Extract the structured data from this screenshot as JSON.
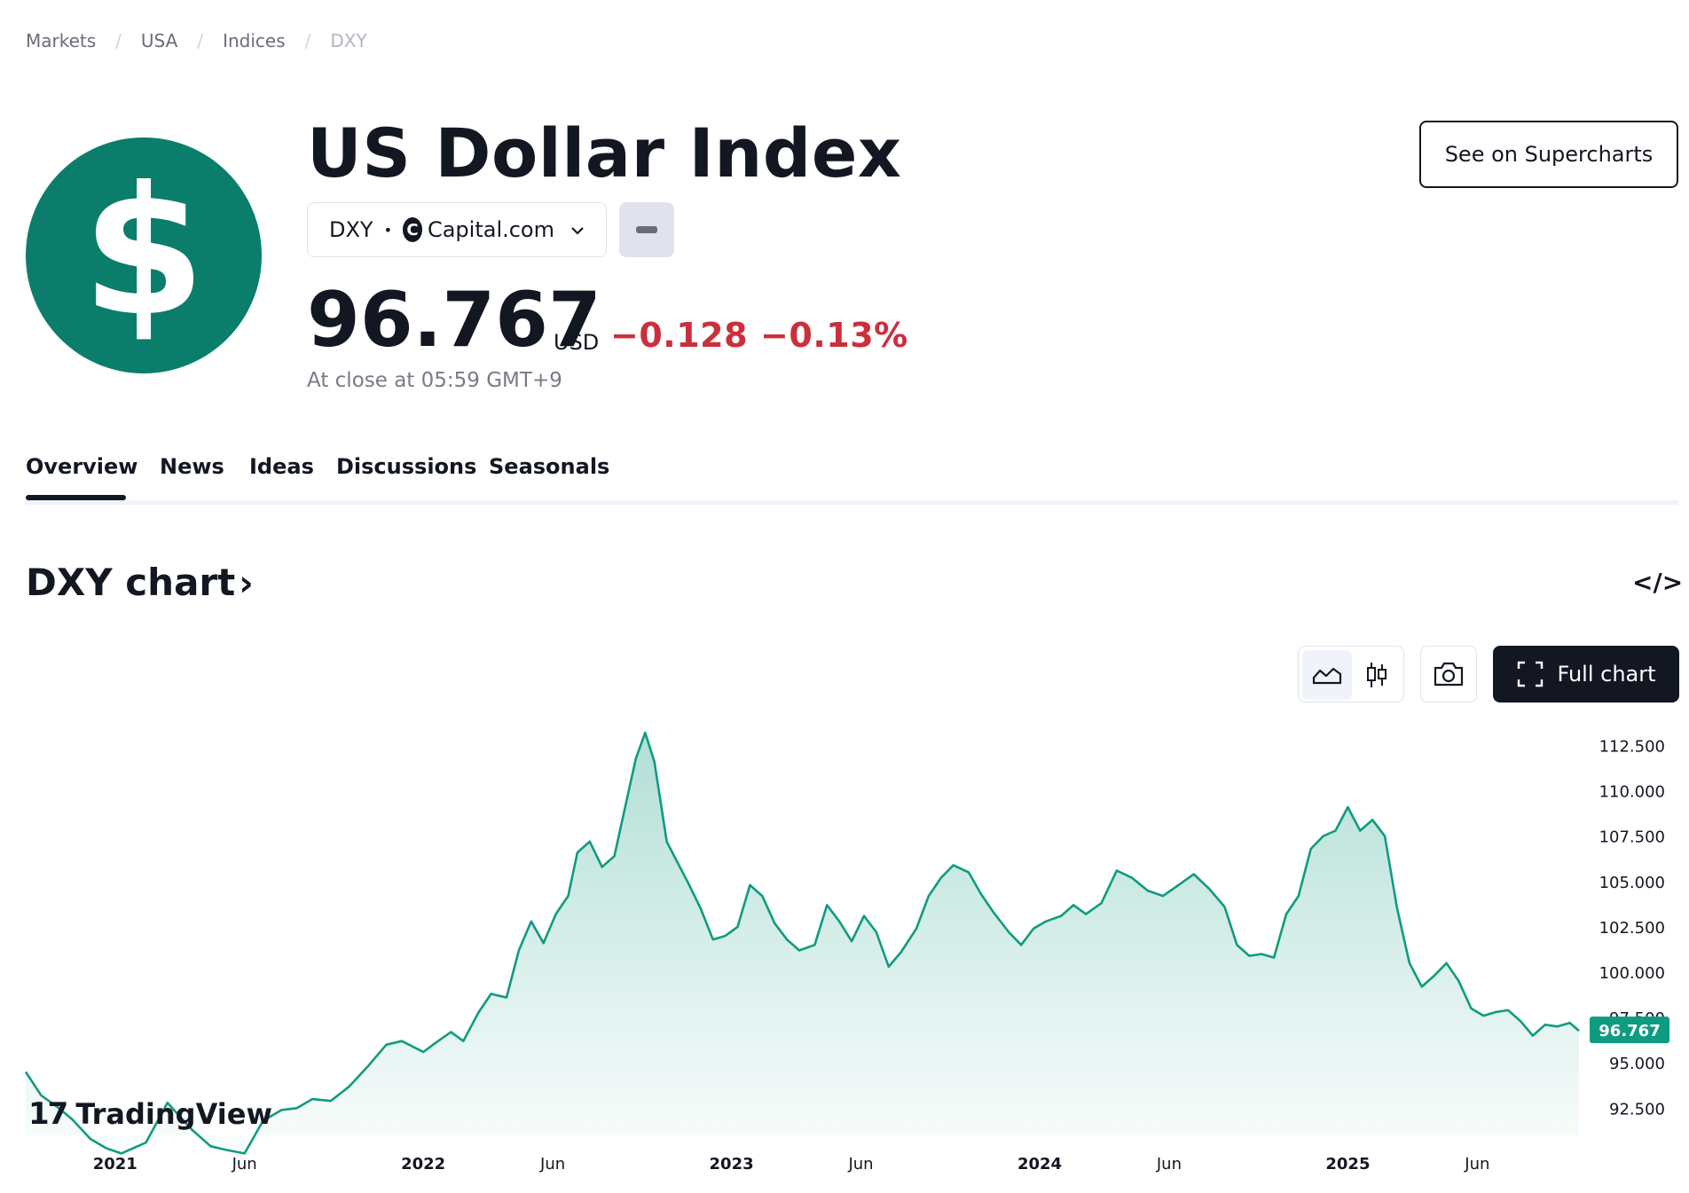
{
  "breadcrumb": {
    "items": [
      "Markets",
      "USA",
      "Indices",
      "DXY"
    ]
  },
  "header": {
    "logo_glyph": "$",
    "logo_color": "#0a7e6b",
    "title": "US Dollar Index",
    "symbol": "DXY",
    "exchange_icon_letter": "C",
    "exchange": "Capital.com",
    "supercharts_label": "See on Supercharts"
  },
  "quote": {
    "price": "96.767",
    "currency": "USD",
    "change": "−0.128",
    "change_pct": "−0.13%",
    "change_color": "#cc2f3c",
    "close_note": "At close at 05:59 GMT+9"
  },
  "tabs": [
    {
      "label": "Overview",
      "active": true
    },
    {
      "label": "News",
      "active": false
    },
    {
      "label": "Ideas",
      "active": false
    },
    {
      "label": "Discussions",
      "active": false
    },
    {
      "label": "Seasonals",
      "active": false
    }
  ],
  "chart_section": {
    "heading": "DXY chart",
    "heading_arrow": "›",
    "embed_icon": "</>",
    "full_chart_label": "Full chart",
    "toolbar_icons": [
      "area-chart-icon",
      "candles-icon",
      "camera-icon",
      "fullscreen-icon"
    ],
    "brand_mark": "17",
    "brand_name": "TradingView"
  },
  "chart_data": {
    "type": "area",
    "title": "",
    "xlabel": "",
    "ylabel": "",
    "line_color": "#0f9b80",
    "price_badge": "96.767",
    "ylim": [
      91.0,
      113.5
    ],
    "y_ticks": [
      "112.500",
      "110.000",
      "107.500",
      "105.000",
      "102.500",
      "100.000",
      "97.500",
      "95.000",
      "92.500"
    ],
    "x_tick_labels": [
      "2021",
      "Jun",
      "2022",
      "Jun",
      "2023",
      "Jun",
      "2024",
      "Jun",
      "2025",
      "Jun"
    ],
    "x_tick_positions": [
      2021.0,
      2021.42,
      2022.0,
      2022.42,
      2023.0,
      2023.42,
      2024.0,
      2024.42,
      2025.0,
      2025.42
    ],
    "x_range": [
      2020.71,
      2025.75
    ],
    "grid": false,
    "series": [
      {
        "x": [
          2020.71,
          2020.76,
          2020.81,
          2020.86,
          2020.92,
          2020.97,
          2021.02,
          2021.1,
          2021.17,
          2021.25,
          2021.31,
          2021.36,
          2021.42,
          2021.48,
          2021.54,
          2021.59,
          2021.64,
          2021.7,
          2021.76,
          2021.82,
          2021.88,
          2021.93,
          2022.0,
          2022.04,
          2022.09,
          2022.13,
          2022.18,
          2022.22,
          2022.27,
          2022.31,
          2022.35,
          2022.39,
          2022.43,
          2022.47,
          2022.5,
          2022.54,
          2022.58,
          2022.62,
          2022.66,
          2022.69,
          2022.72,
          2022.75,
          2022.79,
          2022.82,
          2022.86,
          2022.9,
          2022.94,
          2022.98,
          2023.02,
          2023.06,
          2023.1,
          2023.14,
          2023.18,
          2023.22,
          2023.27,
          2023.31,
          2023.35,
          2023.39,
          2023.43,
          2023.47,
          2023.51,
          2023.55,
          2023.6,
          2023.64,
          2023.68,
          2023.72,
          2023.77,
          2023.81,
          2023.85,
          2023.9,
          2023.94,
          2023.98,
          2024.02,
          2024.07,
          2024.11,
          2024.15,
          2024.2,
          2024.25,
          2024.3,
          2024.35,
          2024.4,
          2024.45,
          2024.5,
          2024.55,
          2024.6,
          2024.64,
          2024.68,
          2024.72,
          2024.76,
          2024.8,
          2024.84,
          2024.88,
          2024.92,
          2024.96,
          2025.0,
          2025.04,
          2025.08,
          2025.12,
          2025.16,
          2025.2,
          2025.24,
          2025.28,
          2025.32,
          2025.36,
          2025.4,
          2025.44,
          2025.48,
          2025.52,
          2025.56,
          2025.6,
          2025.64,
          2025.68,
          2025.72,
          2025.75
        ],
        "y": [
          94.5,
          93.2,
          92.6,
          91.9,
          90.8,
          90.3,
          90.0,
          90.6,
          92.8,
          91.3,
          90.4,
          90.2,
          90.0,
          91.8,
          92.4,
          92.5,
          93.0,
          92.9,
          93.7,
          94.8,
          96.0,
          96.2,
          95.6,
          96.1,
          96.7,
          96.2,
          97.8,
          98.8,
          98.6,
          101.2,
          102.8,
          101.6,
          103.2,
          104.2,
          106.6,
          107.2,
          105.8,
          106.4,
          109.5,
          111.8,
          113.2,
          111.6,
          107.2,
          106.2,
          104.9,
          103.5,
          101.8,
          102.0,
          102.5,
          104.8,
          104.2,
          102.7,
          101.8,
          101.2,
          101.5,
          103.7,
          102.8,
          101.7,
          103.1,
          102.2,
          100.3,
          101.1,
          102.4,
          104.2,
          105.2,
          105.9,
          105.5,
          104.3,
          103.3,
          102.2,
          101.5,
          102.4,
          102.8,
          103.1,
          103.7,
          103.2,
          103.8,
          105.6,
          105.2,
          104.5,
          104.2,
          104.8,
          105.4,
          104.6,
          103.6,
          101.5,
          100.9,
          101.0,
          100.8,
          103.2,
          104.2,
          106.8,
          107.5,
          107.8,
          109.1,
          107.8,
          108.4,
          107.5,
          103.5,
          100.5,
          99.2,
          99.8,
          100.5,
          99.5,
          98.0,
          97.6,
          97.8,
          97.9,
          97.3,
          96.5,
          97.1,
          97.0,
          97.2,
          96.767
        ]
      }
    ]
  }
}
